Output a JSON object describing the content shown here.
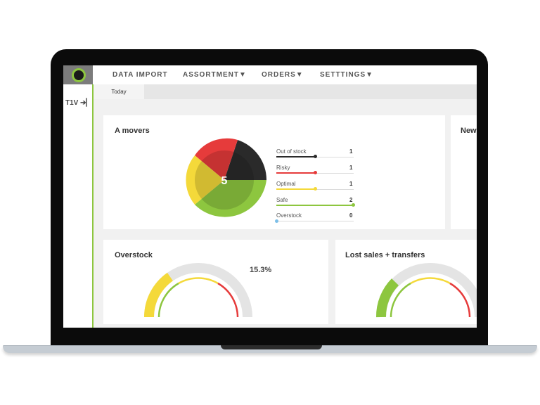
{
  "nav": {
    "items": [
      "DATA IMPORT",
      "ASSORTMENT▼",
      "ORDERS▼",
      "SETTTINGS▼"
    ]
  },
  "sidebar": {
    "label": "T1V ➔▏"
  },
  "tabs": {
    "active": "Today"
  },
  "a_movers": {
    "title": "A movers",
    "center_value": "5",
    "legend": [
      {
        "label": "Out of stock",
        "value": "1",
        "color": "#2a2a2a"
      },
      {
        "label": "Risky",
        "value": "1",
        "color": "#e63b3b"
      },
      {
        "label": "Optimal",
        "value": "1",
        "color": "#f4d93a"
      },
      {
        "label": "Safe",
        "value": "2",
        "color": "#8dc63f"
      },
      {
        "label": "Overstock",
        "value": "0",
        "color": "#7dbfe8"
      }
    ]
  },
  "new_card": {
    "title": "New"
  },
  "overstock": {
    "title": "Overstock",
    "percent": "15.3%",
    "level": 0.153
  },
  "lost_sales": {
    "title": "Lost sales + transfers"
  },
  "colors": {
    "accent": "#8dc63f",
    "red": "#e63b3b",
    "yellow": "#f4d93a",
    "dark": "#2a2a2a"
  }
}
